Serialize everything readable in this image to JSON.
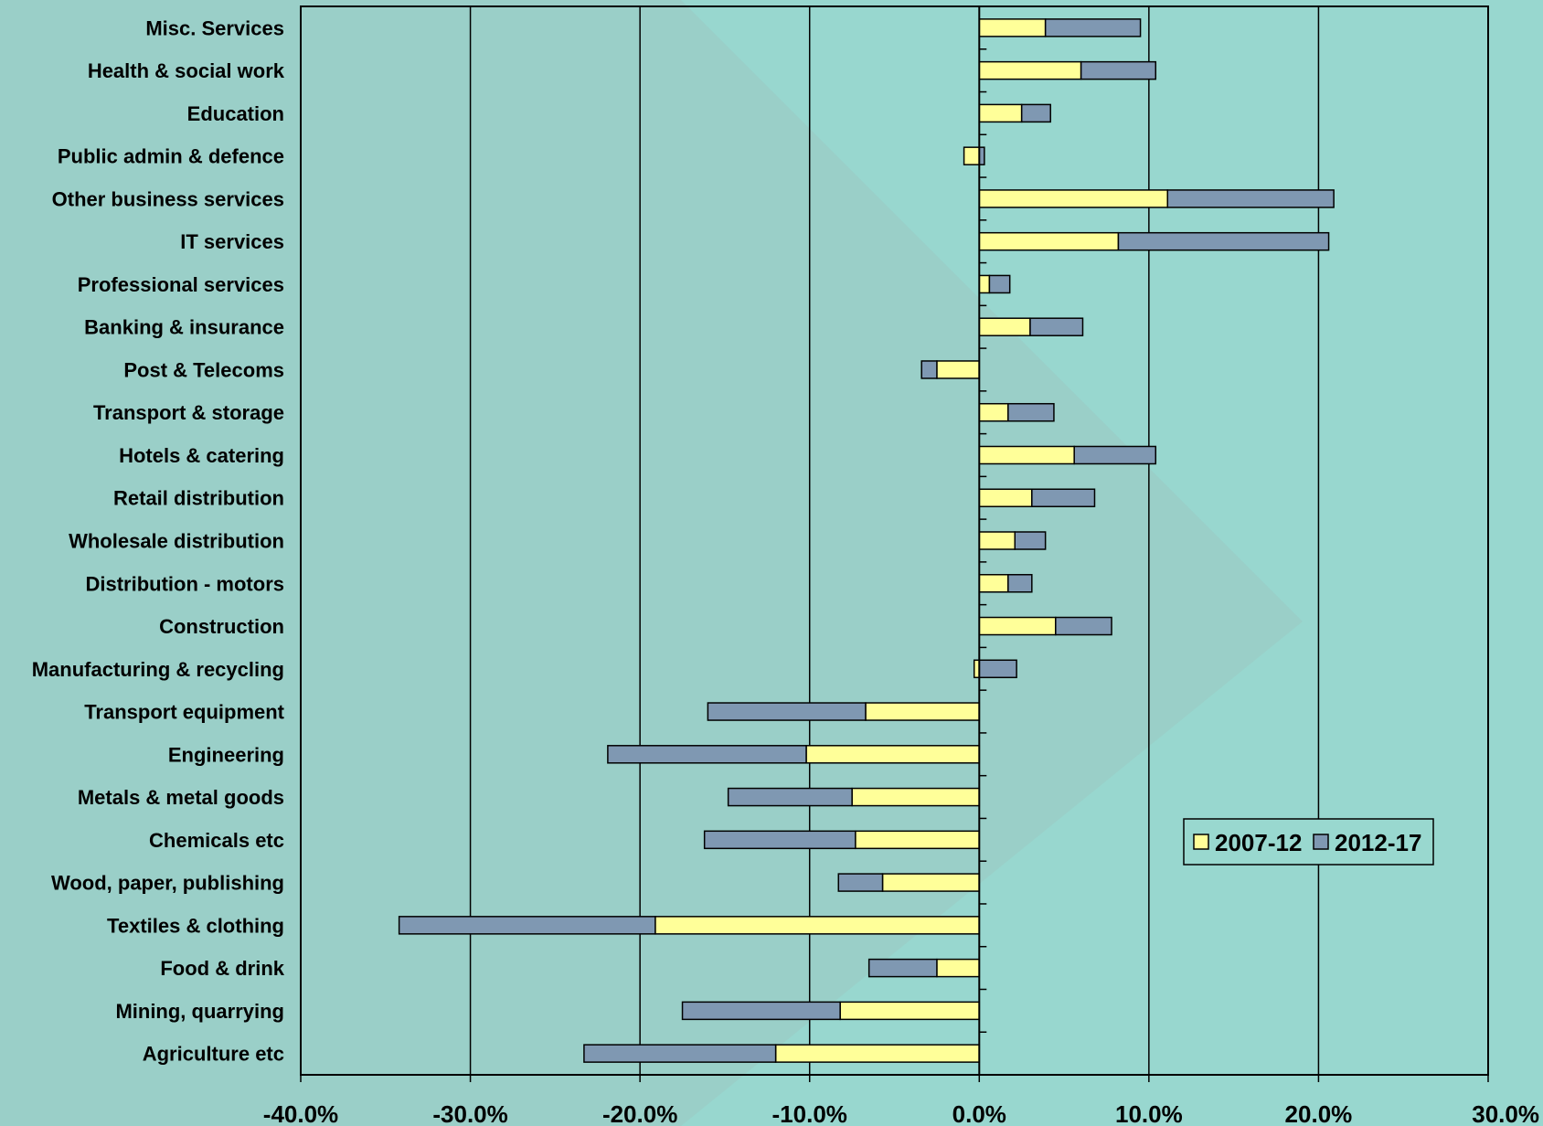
{
  "chart_data": {
    "type": "bar",
    "orientation": "horizontal",
    "stacked": true,
    "categories": [
      "Misc. Services",
      "Health & social work",
      "Education",
      "Public admin & defence",
      "Other business services",
      "IT services",
      "Professional services",
      "Banking & insurance",
      "Post & Telecoms",
      "Transport & storage",
      "Hotels & catering",
      "Retail distribution",
      "Wholesale distribution",
      "Distribution - motors",
      "Construction",
      "Manufacturing & recycling",
      "Transport equipment",
      "Engineering",
      "Metals & metal goods",
      "Chemicals etc",
      "Wood, paper, publishing",
      "Textiles & clothing",
      "Food & drink",
      "Mining, quarrying",
      "Agriculture etc"
    ],
    "series": [
      {
        "name": "2007-12",
        "color": "#ffff99",
        "values": [
          3.9,
          6.0,
          2.5,
          -0.9,
          11.1,
          8.2,
          0.6,
          3.0,
          -2.5,
          1.7,
          5.6,
          3.1,
          2.1,
          1.7,
          4.5,
          -0.3,
          -6.7,
          -10.2,
          -7.5,
          -7.3,
          -5.7,
          -19.1,
          -2.5,
          -8.2,
          -12.0
        ]
      },
      {
        "name": "2012-17",
        "color": "#7f98b2",
        "values": [
          5.6,
          4.4,
          1.7,
          0.3,
          9.8,
          12.4,
          1.2,
          3.1,
          -0.9,
          2.7,
          4.8,
          3.7,
          1.8,
          1.4,
          3.3,
          2.2,
          -9.3,
          -11.7,
          -7.3,
          -8.9,
          -2.6,
          -15.1,
          -4.0,
          -9.3,
          -11.3
        ]
      }
    ],
    "xlim": [
      -40,
      30
    ],
    "x_ticks": [
      "-40.0%",
      "-30.0%",
      "-20.0%",
      "-10.0%",
      "0.0%",
      "10.0%",
      "20.0%",
      "30.0%"
    ],
    "x_tick_values": [
      -40,
      -30,
      -20,
      -10,
      0,
      10,
      20,
      30
    ],
    "grid": true,
    "legend_position": "right",
    "background_color": "#99d8cf",
    "title": "",
    "xlabel": "",
    "ylabel": ""
  }
}
